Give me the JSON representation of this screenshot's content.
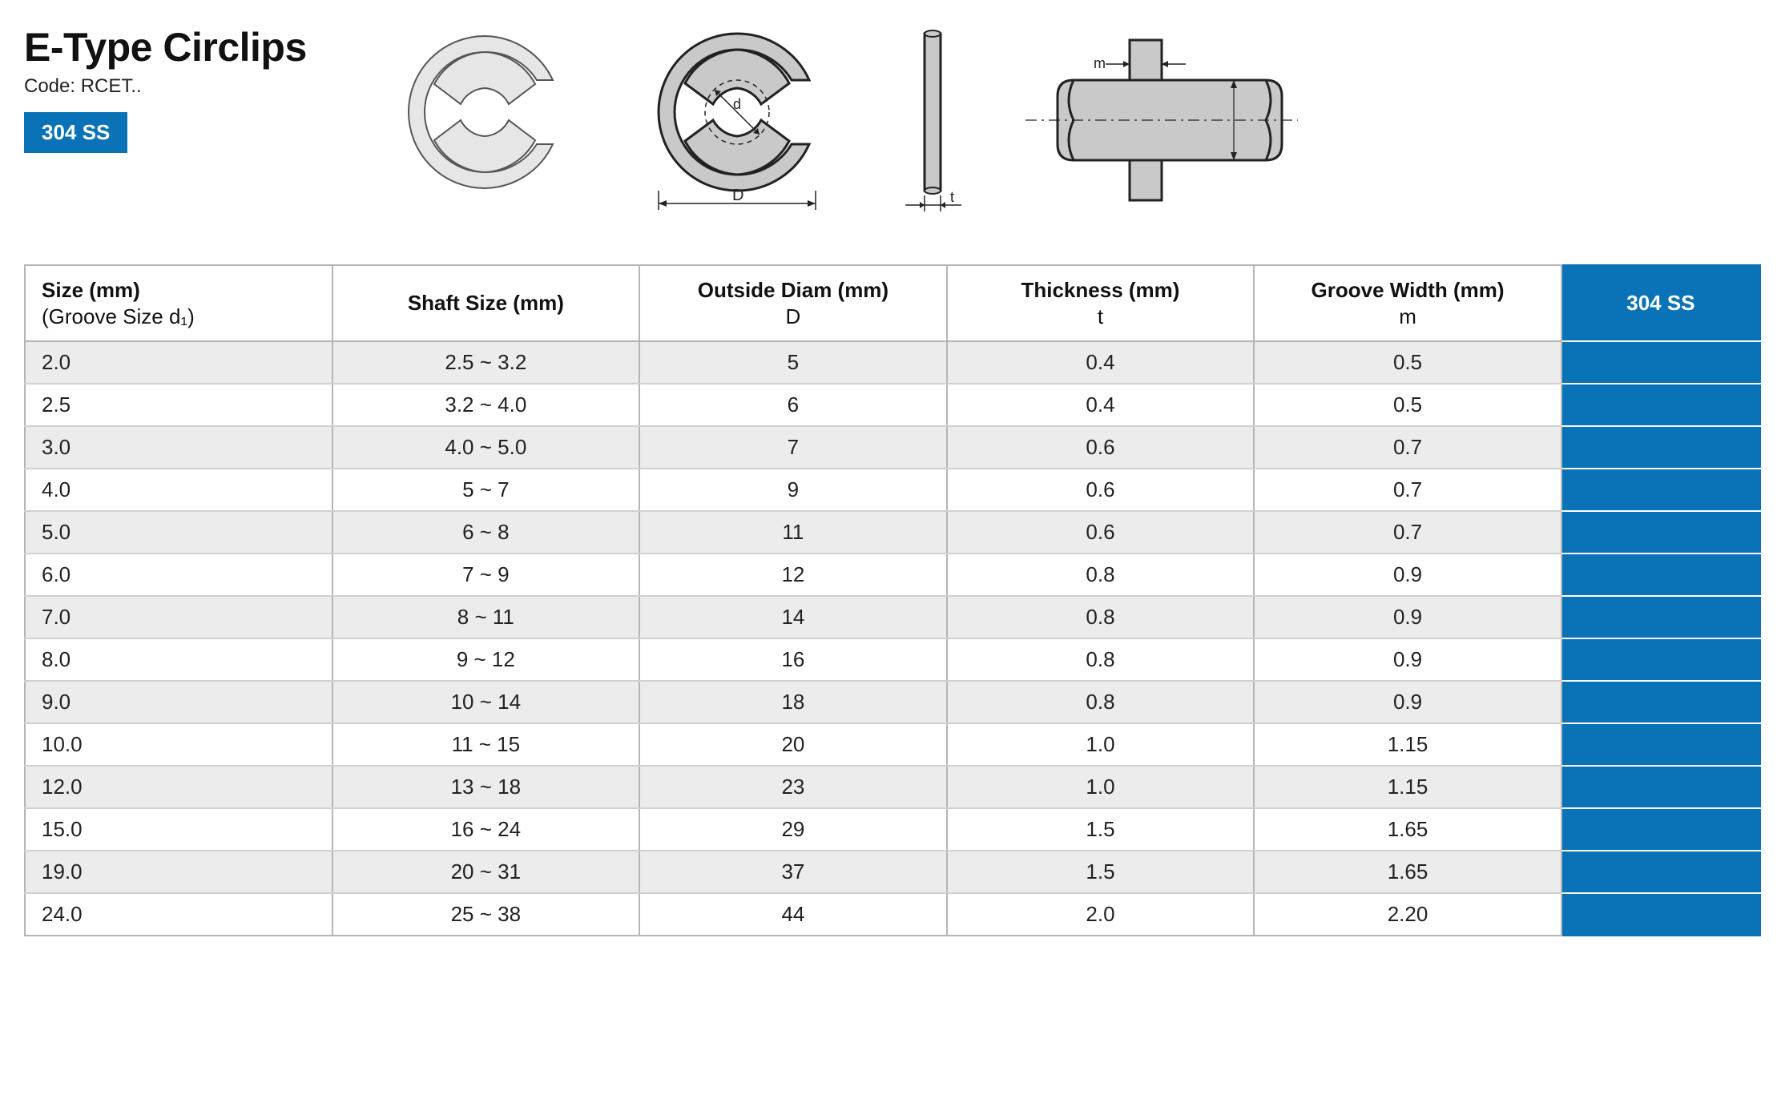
{
  "header": {
    "title": "E-Type Circlips",
    "code_label": "Code: RCET..",
    "material_badge": "304 SS"
  },
  "table": {
    "columns": [
      {
        "key": "size",
        "label_line1": "Size (mm)",
        "label_line2": "(Groove Size d₁)",
        "align": "left"
      },
      {
        "key": "shaft",
        "label_line1": "Shaft Size (mm)",
        "label_line2": "",
        "align": "center"
      },
      {
        "key": "od",
        "label_line1": "Outside Diam (mm)",
        "label_line2": "D",
        "align": "center"
      },
      {
        "key": "thick",
        "label_line1": "Thickness (mm)",
        "label_line2": "t",
        "align": "center"
      },
      {
        "key": "groove",
        "label_line1": "Groove Width (mm)",
        "label_line2": "m",
        "align": "center"
      }
    ],
    "material_column_label": "304 SS",
    "rows": [
      {
        "size": "2.0",
        "shaft": "2.5 ~ 3.2",
        "od": "5",
        "thick": "0.4",
        "groove": "0.5"
      },
      {
        "size": "2.5",
        "shaft": "3.2 ~ 4.0",
        "od": "6",
        "thick": "0.4",
        "groove": "0.5"
      },
      {
        "size": "3.0",
        "shaft": "4.0 ~ 5.0",
        "od": "7",
        "thick": "0.6",
        "groove": "0.7"
      },
      {
        "size": "4.0",
        "shaft": "5 ~ 7",
        "od": "9",
        "thick": "0.6",
        "groove": "0.7"
      },
      {
        "size": "5.0",
        "shaft": "6 ~ 8",
        "od": "11",
        "thick": "0.6",
        "groove": "0.7"
      },
      {
        "size": "6.0",
        "shaft": "7 ~ 9",
        "od": "12",
        "thick": "0.8",
        "groove": "0.9"
      },
      {
        "size": "7.0",
        "shaft": "8 ~ 11",
        "od": "14",
        "thick": "0.8",
        "groove": "0.9"
      },
      {
        "size": "8.0",
        "shaft": "9 ~ 12",
        "od": "16",
        "thick": "0.8",
        "groove": "0.9"
      },
      {
        "size": "9.0",
        "shaft": "10 ~ 14",
        "od": "18",
        "thick": "0.8",
        "groove": "0.9"
      },
      {
        "size": "10.0",
        "shaft": "11 ~ 15",
        "od": "20",
        "thick": "1.0",
        "groove": "1.15"
      },
      {
        "size": "12.0",
        "shaft": "13 ~ 18",
        "od": "23",
        "thick": "1.0",
        "groove": "1.15"
      },
      {
        "size": "15.0",
        "shaft": "16 ~ 24",
        "od": "29",
        "thick": "1.5",
        "groove": "1.65"
      },
      {
        "size": "19.0",
        "shaft": "20 ~ 31",
        "od": "37",
        "thick": "1.5",
        "groove": "1.65"
      },
      {
        "size": "24.0",
        "shaft": "25 ~ 38",
        "od": "44",
        "thick": "2.0",
        "groove": "2.20"
      }
    ],
    "styling": {
      "header_bg": "#ffffff",
      "header_text_color": "#111111",
      "border_color": "#b5b5b5",
      "row_divider_color": "#d0d0d0",
      "alt_row_bg": "#ececec",
      "material_bg": "#0a73b7",
      "material_text": "#ffffff",
      "body_font_size_pt": 20,
      "header_font_size_pt": 20,
      "title_font_size_pt": 38
    }
  },
  "diagrams": {
    "labels": {
      "inner_diam": "d",
      "outer_diam": "D",
      "thickness": "t",
      "groove_width": "m"
    },
    "colors": {
      "fill": "#c9c9c9",
      "stroke": "#222222",
      "dash": "#222222",
      "label": "#222222"
    }
  }
}
